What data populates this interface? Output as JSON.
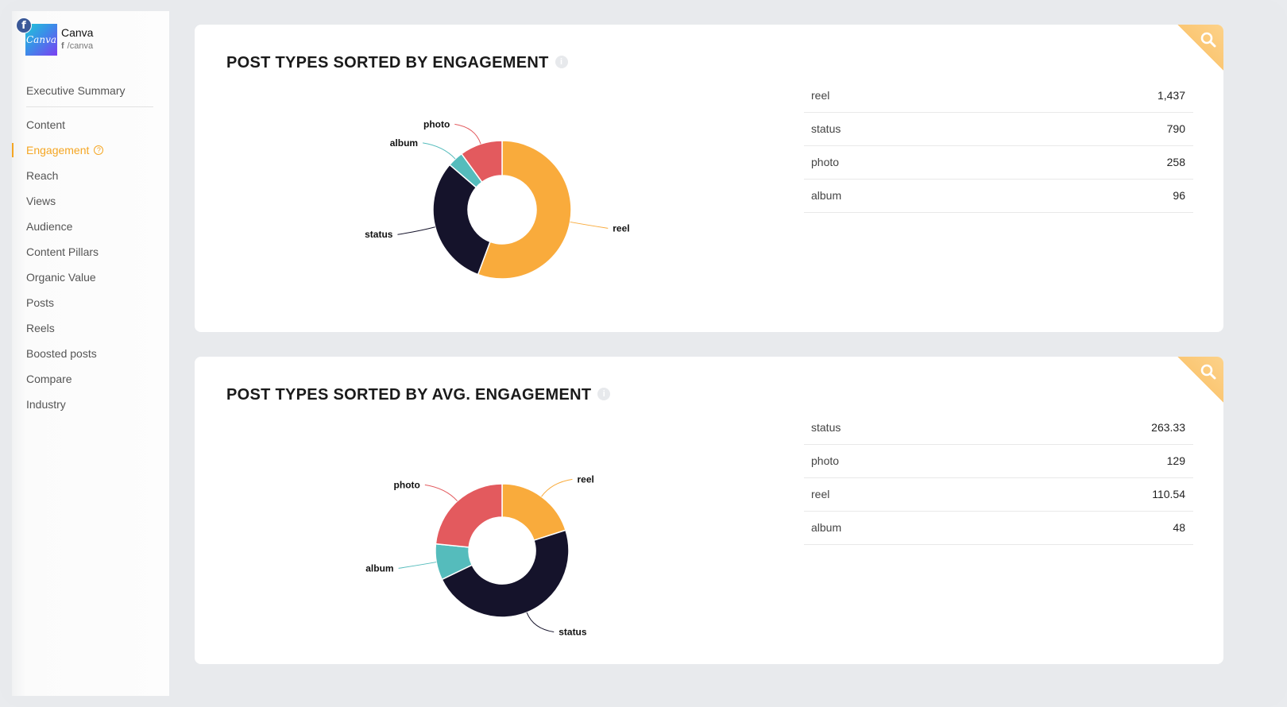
{
  "brand": {
    "name": "Canva",
    "handle": "/canva",
    "logo_text": "Canva",
    "network_icon": "facebook-icon",
    "colors": {
      "facebook": "#3b5998"
    }
  },
  "sidebar": {
    "items": [
      {
        "label": "Executive Summary",
        "active": false
      },
      {
        "label": "Content",
        "active": false
      },
      {
        "label": "Engagement",
        "active": true
      },
      {
        "label": "Reach",
        "active": false
      },
      {
        "label": "Views",
        "active": false
      },
      {
        "label": "Audience",
        "active": false
      },
      {
        "label": "Content Pillars",
        "active": false
      },
      {
        "label": "Organic Value",
        "active": false
      },
      {
        "label": "Posts",
        "active": false
      },
      {
        "label": "Reels",
        "active": false
      },
      {
        "label": "Boosted posts",
        "active": false
      },
      {
        "label": "Compare",
        "active": false
      },
      {
        "label": "Industry",
        "active": false
      }
    ],
    "accent": "#f5a623"
  },
  "cards": [
    {
      "title": "POST TYPES SORTED BY ENGAGEMENT",
      "rows": [
        {
          "label": "reel",
          "value": "1,437"
        },
        {
          "label": "status",
          "value": "790"
        },
        {
          "label": "photo",
          "value": "258"
        },
        {
          "label": "album",
          "value": "96"
        }
      ]
    },
    {
      "title": "POST TYPES SORTED BY AVG. ENGAGEMENT",
      "rows": [
        {
          "label": "status",
          "value": "263.33"
        },
        {
          "label": "photo",
          "value": "129"
        },
        {
          "label": "reel",
          "value": "110.54"
        },
        {
          "label": "album",
          "value": "48"
        }
      ]
    }
  ],
  "colors": {
    "reel": "#f9ab3c",
    "status": "#15132b",
    "album": "#55bcbc",
    "photo": "#e35a5e"
  },
  "chart_data": [
    {
      "type": "pie",
      "title": "POST TYPES SORTED BY ENGAGEMENT",
      "categories": [
        "reel",
        "status",
        "album",
        "photo"
      ],
      "values": [
        1437,
        790,
        96,
        258
      ]
    },
    {
      "type": "pie",
      "title": "POST TYPES SORTED BY AVG. ENGAGEMENT",
      "categories": [
        "reel",
        "status",
        "album",
        "photo"
      ],
      "values": [
        110.54,
        263.33,
        48,
        129
      ]
    }
  ]
}
